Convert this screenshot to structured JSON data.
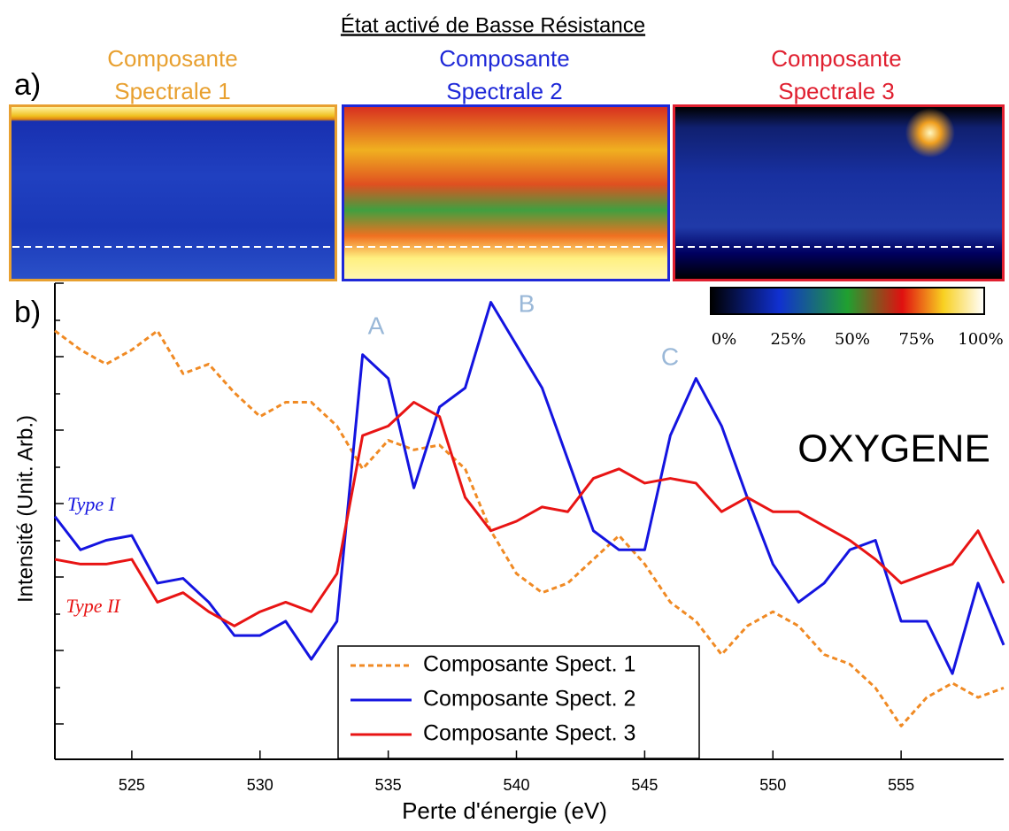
{
  "title": "État activé de Basse Résistance",
  "panel_a": {
    "label": "a)",
    "maps": [
      {
        "title": "Composante Spectrale 1",
        "color": "#e8a030"
      },
      {
        "title": "Composante Spectrale 2",
        "color": "#1e28d8"
      },
      {
        "title": "Composante Spectrale 3",
        "color": "#e02030"
      }
    ],
    "colorbar": {
      "lim": [
        0,
        100
      ],
      "ticks": [
        {
          "value": 0,
          "label": "0%"
        },
        {
          "value": 25,
          "label": "25%"
        },
        {
          "value": 50,
          "label": "50%"
        },
        {
          "value": 75,
          "label": "75%"
        },
        {
          "value": 100,
          "label": "100%"
        }
      ]
    }
  },
  "chart_data": {
    "type": "line",
    "panel_label": "b)",
    "x_label": "Perte d'énergie (eV)",
    "y_label": "Intensité (Unit. Arb.)",
    "xlim": [
      522,
      559
    ],
    "xticks": [
      525,
      530,
      535,
      540,
      545,
      550,
      555
    ],
    "ylim": [
      0,
      10
    ],
    "x": [
      522,
      523,
      524,
      525,
      526,
      527,
      528,
      529,
      530,
      531,
      532,
      533,
      534,
      535,
      536,
      537,
      538,
      539,
      540,
      541,
      542,
      543,
      544,
      545,
      546,
      547,
      548,
      549,
      550,
      551,
      552,
      553,
      554,
      555,
      556,
      557,
      558,
      559
    ],
    "series": [
      {
        "name": "Composante Spect. 1",
        "color": "#f08a24",
        "style": "dashed",
        "values": [
          9.0,
          8.6,
          8.3,
          8.6,
          9.0,
          8.1,
          8.3,
          7.7,
          7.2,
          7.5,
          7.5,
          7.0,
          6.1,
          6.7,
          6.5,
          6.6,
          6.1,
          4.8,
          3.9,
          3.5,
          3.7,
          4.2,
          4.7,
          4.1,
          3.3,
          2.9,
          2.2,
          2.8,
          3.1,
          2.8,
          2.2,
          2.0,
          1.5,
          0.7,
          1.3,
          1.6,
          1.3,
          1.5
        ]
      },
      {
        "name": "Composante Spect. 2",
        "color": "#1414e0",
        "style": "solid",
        "values": [
          5.1,
          4.4,
          4.6,
          4.7,
          3.7,
          3.8,
          3.3,
          2.6,
          2.6,
          2.9,
          2.1,
          2.9,
          8.5,
          8.0,
          5.7,
          7.4,
          7.8,
          9.6,
          8.7,
          7.8,
          6.3,
          4.8,
          4.4,
          4.4,
          6.8,
          8.0,
          7.0,
          5.5,
          4.1,
          3.3,
          3.7,
          4.4,
          4.6,
          2.9,
          2.9,
          1.8,
          3.7,
          2.4
        ]
      },
      {
        "name": "Composante Spect. 3",
        "color": "#e81414",
        "style": "solid",
        "values": [
          4.2,
          4.1,
          4.1,
          4.2,
          3.3,
          3.5,
          3.1,
          2.8,
          3.1,
          3.3,
          3.1,
          3.9,
          6.8,
          7.0,
          7.5,
          7.2,
          5.5,
          4.8,
          5.0,
          5.3,
          5.2,
          5.9,
          6.1,
          5.8,
          5.9,
          5.8,
          5.2,
          5.5,
          5.2,
          5.2,
          4.9,
          4.6,
          4.2,
          3.7,
          3.9,
          4.1,
          4.8,
          3.7
        ]
      }
    ],
    "annotations": [
      {
        "text": "A"
      },
      {
        "text": "B"
      },
      {
        "text": "C"
      },
      {
        "text": "OXYGENE"
      },
      {
        "text": "Type I"
      },
      {
        "text": "Type II"
      }
    ]
  }
}
